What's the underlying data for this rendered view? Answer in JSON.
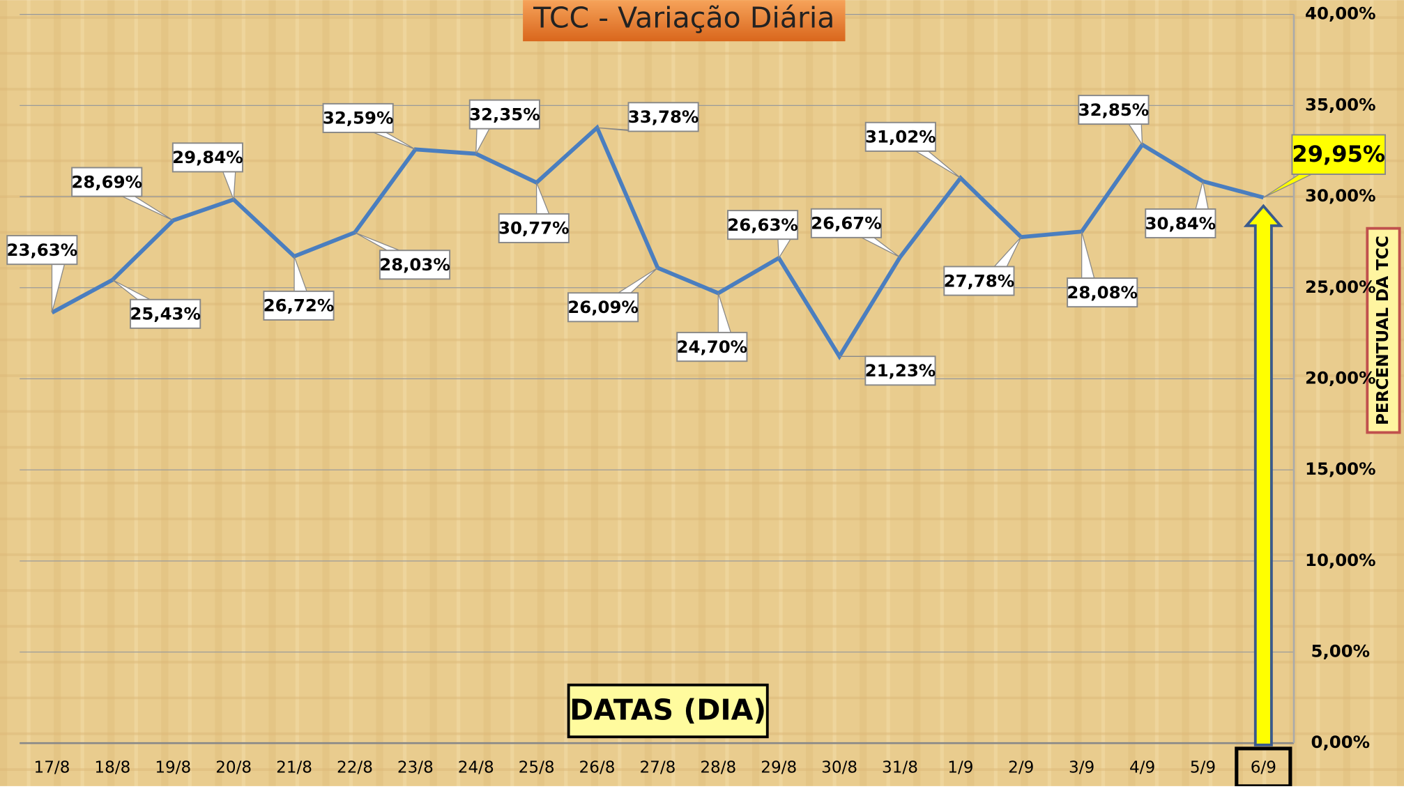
{
  "chart_data": {
    "type": "line",
    "title": "TCC - Variação Diária",
    "x_label": "DATAS (DIA)",
    "y_label": "PERCENTUAL DA TCC",
    "categories": [
      "17/8",
      "18/8",
      "19/8",
      "20/8",
      "21/8",
      "22/8",
      "23/8",
      "24/8",
      "25/8",
      "26/8",
      "27/8",
      "28/8",
      "29/8",
      "30/8",
      "31/8",
      "1/9",
      "2/9",
      "3/9",
      "4/9",
      "5/9",
      "6/9"
    ],
    "series": [
      {
        "name": "TCC",
        "color": "#4a7ebf",
        "values": [
          23.63,
          25.43,
          28.69,
          29.84,
          26.72,
          28.03,
          32.59,
          32.35,
          30.77,
          33.78,
          26.09,
          24.7,
          26.63,
          21.23,
          26.67,
          31.02,
          27.78,
          28.08,
          32.85,
          30.84,
          29.95
        ],
        "value_labels": [
          "23,63%",
          "25,43%",
          "28,69%",
          "29,84%",
          "26,72%",
          "28,03%",
          "32,59%",
          "32,35%",
          "30,77%",
          "33,78%",
          "26,09%",
          "24,70%",
          "26,63%",
          "21,23%",
          "26,67%",
          "31,02%",
          "27,78%",
          "28,08%",
          "32,85%",
          "30,84%",
          "29,95%"
        ]
      }
    ],
    "ylim": [
      0,
      40
    ],
    "yticks": [
      {
        "value": 0,
        "label": "0,00%"
      },
      {
        "value": 5,
        "label": "5,00%"
      },
      {
        "value": 10,
        "label": "10,00%"
      },
      {
        "value": 15,
        "label": "15,00%"
      },
      {
        "value": 20,
        "label": "20,00%"
      },
      {
        "value": 25,
        "label": "25,00%"
      },
      {
        "value": 30,
        "label": "30,00%"
      },
      {
        "value": 35,
        "label": "35,00%"
      },
      {
        "value": 40,
        "label": "40,00%"
      }
    ],
    "grid": true
  }
}
